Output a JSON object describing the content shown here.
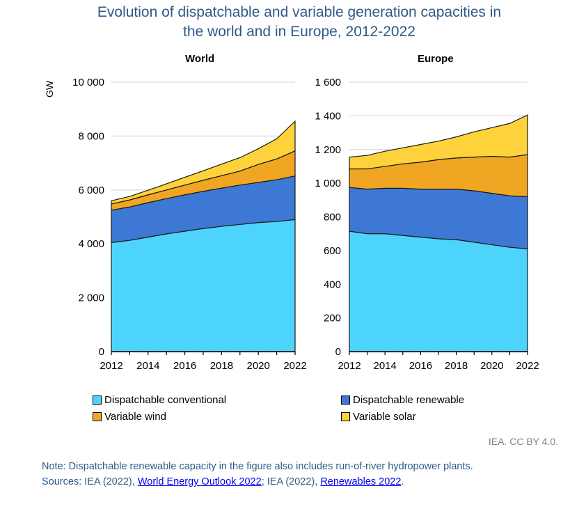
{
  "title_line1": "Evolution of dispatchable and variable generation capacities in",
  "title_line2": "the world and in Europe, 2012-2022",
  "credit": "IEA. CC BY 4.0.",
  "note": "Note: Dispatchable renewable capacity in the figure also includes run-of-river hydropower plants.",
  "sources": {
    "prefix": "Sources: IEA (2022), ",
    "link1": "World Energy Outlook 2022",
    "middle": "; IEA (2022), ",
    "link2": "Renewables 2022",
    "suffix": "."
  },
  "legend": [
    {
      "name": "Dispatchable conventional",
      "color": "#4dd4fc"
    },
    {
      "name": "Dispatchable renewable",
      "color": "#3d78d4"
    },
    {
      "name": "Variable wind",
      "color": "#f0a623"
    },
    {
      "name": "Variable solar",
      "color": "#fdd23a"
    }
  ],
  "chart_data": [
    {
      "type": "area",
      "stacked": true,
      "title": "World",
      "ylabel": "GW",
      "x": [
        2012,
        2013,
        2014,
        2015,
        2016,
        2017,
        2018,
        2019,
        2020,
        2021,
        2022
      ],
      "xticks": [
        "2012",
        "2014",
        "2016",
        "2018",
        "2020",
        "2022"
      ],
      "ylim": [
        0,
        10000
      ],
      "yticks": [
        "0",
        "2 000",
        "4 000",
        "6 000",
        "8 000",
        "10 000"
      ],
      "ytick_values": [
        0,
        2000,
        4000,
        6000,
        8000,
        10000
      ],
      "grid": true,
      "series": [
        {
          "name": "Dispatchable conventional",
          "values": [
            4050,
            4130,
            4250,
            4370,
            4470,
            4570,
            4650,
            4720,
            4790,
            4830,
            4900
          ]
        },
        {
          "name": "Dispatchable renewable",
          "values": [
            1200,
            1240,
            1280,
            1310,
            1350,
            1380,
            1420,
            1460,
            1490,
            1550,
            1620
          ]
        },
        {
          "name": "Variable wind",
          "values": [
            230,
            260,
            290,
            320,
            360,
            410,
            460,
            520,
            670,
            770,
            930
          ]
        },
        {
          "name": "Variable solar",
          "values": [
            120,
            130,
            170,
            230,
            290,
            350,
            430,
            500,
            580,
            750,
            1100
          ]
        }
      ]
    },
    {
      "type": "area",
      "stacked": true,
      "title": "Europe",
      "ylabel": "",
      "x": [
        2012,
        2013,
        2014,
        2015,
        2016,
        2017,
        2018,
        2019,
        2020,
        2021,
        2022
      ],
      "xticks": [
        "2012",
        "2014",
        "2016",
        "2018",
        "2020",
        "2022"
      ],
      "ylim": [
        0,
        1600
      ],
      "yticks": [
        "0",
        "200",
        "400",
        "600",
        "800",
        "1 000",
        "1 200",
        "1 400",
        "1 600"
      ],
      "ytick_values": [
        0,
        200,
        400,
        600,
        800,
        1000,
        1200,
        1400,
        1600
      ],
      "grid": true,
      "series": [
        {
          "name": "Dispatchable conventional",
          "values": [
            715,
            700,
            700,
            690,
            680,
            670,
            665,
            650,
            635,
            620,
            610
          ]
        },
        {
          "name": "Dispatchable renewable",
          "values": [
            260,
            265,
            270,
            280,
            285,
            295,
            300,
            305,
            305,
            305,
            310
          ]
        },
        {
          "name": "Variable wind",
          "values": [
            110,
            120,
            130,
            145,
            160,
            175,
            185,
            200,
            220,
            230,
            250
          ]
        },
        {
          "name": "Variable solar",
          "values": [
            70,
            80,
            90,
            95,
            105,
            110,
            125,
            150,
            170,
            200,
            235
          ]
        }
      ]
    }
  ]
}
